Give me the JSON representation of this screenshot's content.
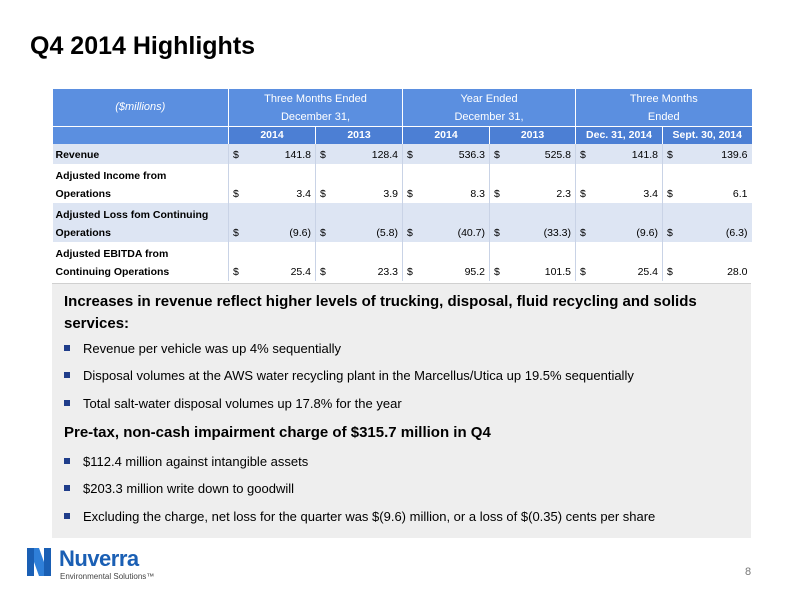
{
  "title": "Q4 2014 Highlights",
  "table": {
    "units": "($millions)",
    "groups": [
      {
        "line1": "Three Months Ended",
        "line2": "December 31,"
      },
      {
        "line1": "Year Ended",
        "line2": "December 31,"
      },
      {
        "line1": "Three Months",
        "line2": "Ended"
      }
    ],
    "subheaders": [
      "2014",
      "2013",
      "2014",
      "2013",
      "Dec. 31, 2014",
      "Sept. 30, 2014"
    ],
    "currency": "$",
    "rows": [
      {
        "label": [
          "Revenue"
        ],
        "values": [
          "141.8",
          "128.4",
          "536.3",
          "525.8",
          "141.8",
          "139.6"
        ]
      },
      {
        "label": [
          "Adjusted Income from",
          "Operations"
        ],
        "values": [
          "3.4",
          "3.9",
          "8.3",
          "2.3",
          "3.4",
          "6.1"
        ]
      },
      {
        "label": [
          "Adjusted Loss fom Continuing",
          "Operations"
        ],
        "values": [
          "(9.6)",
          "(5.8)",
          "(40.7)",
          "(33.3)",
          "(9.6)",
          "(6.3)"
        ]
      },
      {
        "label": [
          "Adjusted EBITDA from",
          "Continuing Operations"
        ],
        "values": [
          "25.4",
          "23.3",
          "95.2",
          "101.5",
          "25.4",
          "28.0"
        ]
      }
    ]
  },
  "highlights": {
    "heading1": "Increases in revenue reflect higher levels of trucking, disposal, fluid recycling and solids services:",
    "bullets1": [
      "Revenue per vehicle was up 4% sequentially",
      "Disposal volumes at the AWS water recycling plant in the Marcellus/Utica up 19.5% sequentially",
      "Total salt-water disposal volumes up 17.8% for the year"
    ],
    "heading2": "Pre-tax, non-cash impairment charge of $315.7 million in Q4",
    "bullets2": [
      "$112.4 million against intangible assets",
      "$203.3 million write down to goodwill",
      "Excluding the charge, net loss for the quarter was $(9.6) million, or a loss of $(0.35) cents per share"
    ]
  },
  "logo": {
    "name": "Nuverra",
    "tagline": "Environmental Solutions™"
  },
  "page_number": "8",
  "colors": {
    "header_blue": "#5b8fe0",
    "subheader_blue": "#4c7fd4",
    "row_shade": "#dde5f3",
    "bullet": "#1f3d8a",
    "logo_blue": "#1a5fb4"
  }
}
